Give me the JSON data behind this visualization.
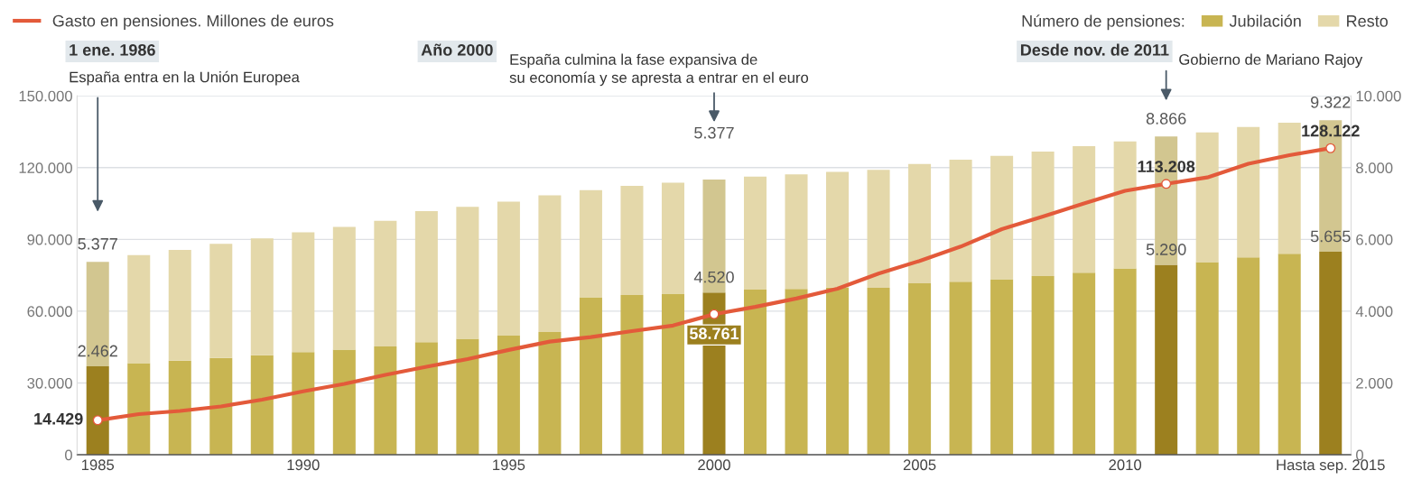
{
  "chart_data": {
    "type": "bar",
    "stacked": true,
    "categories": [
      "1985",
      null,
      null,
      null,
      null,
      "1990",
      null,
      null,
      null,
      null,
      "1995",
      null,
      null,
      null,
      null,
      "2000",
      null,
      null,
      null,
      null,
      "2005",
      null,
      null,
      null,
      null,
      "2010",
      null,
      null,
      null,
      null,
      "Hasta sep. 2015"
    ],
    "series": [
      {
        "name": "Jubilación",
        "axis": "y2",
        "color": "#c8b552",
        "colors": [
          "#9c801f",
          "#c8b552",
          "#c8b552",
          "#c8b552",
          "#c8b552",
          "#c8b552",
          "#c8b552",
          "#c8b552",
          "#c8b552",
          "#c8b552",
          "#c8b552",
          "#c8b552",
          "#c8b552",
          "#c8b552",
          "#c8b552",
          "#9c801f",
          "#c8b552",
          "#c8b552",
          "#c8b552",
          "#c8b552",
          "#c8b552",
          "#c8b552",
          "#c8b552",
          "#c8b552",
          "#c8b552",
          "#c8b552",
          "#9c801f",
          "#c8b552",
          "#c8b552",
          "#c8b552",
          "#9c801f"
        ],
        "values": [
          2462,
          2550,
          2620,
          2700,
          2770,
          2860,
          2930,
          3020,
          3140,
          3230,
          3320,
          3420,
          4390,
          4450,
          4490,
          4520,
          4600,
          4620,
          4660,
          4650,
          4780,
          4820,
          4890,
          4980,
          5070,
          5190,
          5290,
          5370,
          5500,
          5600,
          5655
        ],
        "value_labels": [
          "2.462",
          null,
          null,
          null,
          null,
          null,
          null,
          null,
          null,
          null,
          null,
          null,
          null,
          null,
          null,
          "4.520",
          null,
          null,
          null,
          null,
          null,
          null,
          null,
          null,
          null,
          null,
          "5.290",
          null,
          null,
          null,
          "5.655"
        ]
      },
      {
        "name": "Resto",
        "axis": "y2",
        "color": "#e4d8aa",
        "colors": [
          "#d2c690",
          "#e4d8aa",
          "#e4d8aa",
          "#e4d8aa",
          "#e4d8aa",
          "#e4d8aa",
          "#e4d8aa",
          "#e4d8aa",
          "#e4d8aa",
          "#e4d8aa",
          "#e4d8aa",
          "#e4d8aa",
          "#e4d8aa",
          "#e4d8aa",
          "#e4d8aa",
          "#d2c690",
          "#e4d8aa",
          "#e4d8aa",
          "#e4d8aa",
          "#e4d8aa",
          "#e4d8aa",
          "#e4d8aa",
          "#e4d8aa",
          "#e4d8aa",
          "#e4d8aa",
          "#e4d8aa",
          "#d2c690",
          "#e4d8aa",
          "#e4d8aa",
          "#e4d8aa",
          "#d2c690"
        ],
        "values": [
          2915,
          3010,
          3090,
          3180,
          3260,
          3340,
          3420,
          3500,
          3650,
          3680,
          3730,
          3810,
          2980,
          3040,
          3090,
          3150,
          3150,
          3190,
          3220,
          3290,
          3320,
          3400,
          3440,
          3470,
          3530,
          3540,
          3576,
          3610,
          3630,
          3650,
          3667
        ]
      },
      {
        "name": "Gasto en pensiones. Millones de euros",
        "type": "line",
        "axis": "y",
        "color": "#e35a3a",
        "values": [
          14429,
          17000,
          18300,
          20200,
          23000,
          26500,
          29600,
          33400,
          36800,
          40000,
          43800,
          47300,
          49200,
          51700,
          54000,
          58761,
          61800,
          65300,
          69400,
          75700,
          81000,
          87000,
          94300,
          99600,
          105000,
          110300,
          113208,
          115900,
          121600,
          125200,
          128122
        ],
        "value_labels": [
          "14.429",
          null,
          null,
          null,
          null,
          null,
          null,
          null,
          null,
          null,
          null,
          null,
          null,
          null,
          null,
          "58.761",
          null,
          null,
          null,
          null,
          null,
          null,
          null,
          null,
          null,
          null,
          "113.208",
          null,
          null,
          null,
          "128.122"
        ]
      }
    ],
    "totals": [
      "5.377",
      null,
      null,
      null,
      null,
      null,
      null,
      null,
      null,
      null,
      null,
      null,
      null,
      null,
      null,
      "5.377",
      null,
      null,
      null,
      null,
      null,
      null,
      null,
      null,
      null,
      null,
      "8.866",
      null,
      null,
      null,
      "9.322"
    ],
    "ylim": [
      0,
      150000
    ],
    "yticks": [
      0,
      {
        "value": 30000,
        "label": "30.000"
      },
      {
        "value": 60000,
        "label": "60.000"
      },
      {
        "value": 90000,
        "label": "90.000"
      },
      {
        "value": 120000,
        "label": "120.000"
      },
      {
        "value": 150000,
        "label": "150.000"
      }
    ],
    "y2lim": [
      0,
      10000
    ],
    "y2ticks": [
      0,
      {
        "value": 2000,
        "label": "2.000"
      },
      {
        "value": 4000,
        "label": "4.000"
      },
      {
        "value": 6000,
        "label": "6.000"
      },
      {
        "value": 8000,
        "label": "8.000"
      },
      {
        "value": 10000,
        "label": "10.000"
      }
    ],
    "legend_title": "Número de pensiones:",
    "legend": "top",
    "grid": "y",
    "annotations": [
      "1 ene. 1986",
      "España entra en la Unión Europea",
      "Año 2000",
      "España culmina la fase expansiva de\nsu economía y se apresta a entrar en el euro",
      "Desde nov. de 2011",
      "Gobierno de Mariano Rajoy"
    ]
  }
}
